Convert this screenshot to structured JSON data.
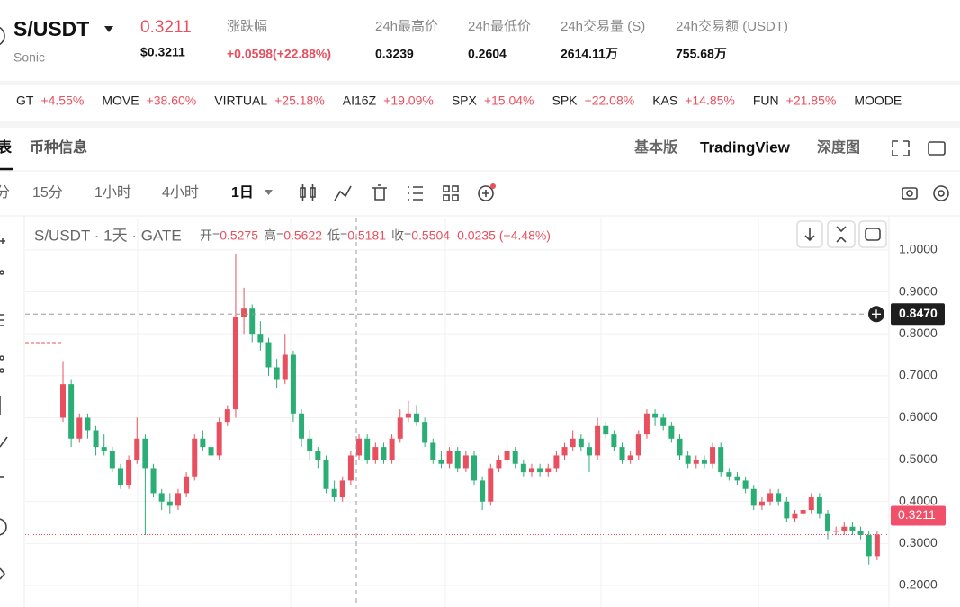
{
  "header": {
    "symbol": "S/USDT",
    "name": "Sonic",
    "price": "0.3211",
    "price_usd": "$0.3211",
    "stats": [
      {
        "label": "涨跌幅",
        "value": "+0.0598(+22.88%)"
      },
      {
        "label": "24h最高价",
        "value": "0.3239"
      },
      {
        "label": "24h最低价",
        "value": "0.2604"
      },
      {
        "label": "24h交易量 (S)",
        "value": "2614.11万"
      },
      {
        "label": "24h交易额 (USDT)",
        "value": "755.68万"
      }
    ]
  },
  "ticker": [
    {
      "symbol": "GT",
      "change": "+4.55%"
    },
    {
      "symbol": "MOVE",
      "change": "+38.60%"
    },
    {
      "symbol": "VIRTUAL",
      "change": "+25.18%"
    },
    {
      "symbol": "AI16Z",
      "change": "+19.09%"
    },
    {
      "symbol": "SPX",
      "change": "+15.04%"
    },
    {
      "symbol": "SPK",
      "change": "+22.08%"
    },
    {
      "symbol": "KAS",
      "change": "+14.85%"
    },
    {
      "symbol": "FUN",
      "change": "+21.85%"
    },
    {
      "symbol": "MOODE"
    }
  ],
  "tabs_left": [
    "表",
    "币种信息"
  ],
  "tabs_right": [
    "基本版",
    "TradingView",
    "深度图"
  ],
  "intervals": [
    "分",
    "15分",
    "1小时",
    "4小时",
    "1日"
  ],
  "legend": {
    "title": "S/USDT · 1天 · GATE",
    "ohlc": [
      {
        "label": "开=",
        "value": "0.5275"
      },
      {
        "label": "高=",
        "value": "0.5622"
      },
      {
        "label": "低=",
        "value": "0.5181"
      },
      {
        "label": "收=",
        "value": "0.5504"
      }
    ],
    "change": "0.0235 (+4.48%)"
  },
  "chart_data": {
    "type": "candlestick",
    "up_color": "#e8505f",
    "down_color": "#2bae76",
    "ylim": [
      0.17,
      1.077
    ],
    "yticks": [
      {
        "value": 0.2,
        "label": "0.2000"
      },
      {
        "value": 0.3,
        "label": "0.3000"
      },
      {
        "value": 0.4,
        "label": "0.4000"
      },
      {
        "value": 0.5,
        "label": "0.5000"
      },
      {
        "value": 0.6,
        "label": "0.6000"
      },
      {
        "value": 0.7,
        "label": "0.7000"
      },
      {
        "value": 0.8,
        "label": "0.8000"
      },
      {
        "value": 0.9,
        "label": "0.9000"
      },
      {
        "value": 1,
        "label": "1.0000"
      }
    ],
    "crosshair_price": {
      "value": 0.847,
      "label": "0.8470"
    },
    "last_price": {
      "value": 0.3211,
      "label": "0.3211"
    },
    "candles": [
      [
        0.6,
        0.735,
        0.59,
        0.68
      ],
      [
        0.68,
        0.69,
        0.53,
        0.55
      ],
      [
        0.55,
        0.61,
        0.54,
        0.6
      ],
      [
        0.6,
        0.61,
        0.55,
        0.57
      ],
      [
        0.57,
        0.58,
        0.51,
        0.53
      ],
      [
        0.53,
        0.56,
        0.51,
        0.52
      ],
      [
        0.52,
        0.53,
        0.47,
        0.48
      ],
      [
        0.48,
        0.49,
        0.43,
        0.44
      ],
      [
        0.44,
        0.51,
        0.43,
        0.5
      ],
      [
        0.5,
        0.6,
        0.49,
        0.55
      ],
      [
        0.55,
        0.56,
        0.32,
        0.48
      ],
      [
        0.48,
        0.49,
        0.41,
        0.42
      ],
      [
        0.42,
        0.43,
        0.38,
        0.4
      ],
      [
        0.4,
        0.42,
        0.37,
        0.39
      ],
      [
        0.39,
        0.43,
        0.38,
        0.42
      ],
      [
        0.42,
        0.47,
        0.41,
        0.46
      ],
      [
        0.46,
        0.56,
        0.45,
        0.55
      ],
      [
        0.55,
        0.57,
        0.52,
        0.53
      ],
      [
        0.53,
        0.55,
        0.5,
        0.51
      ],
      [
        0.51,
        0.6,
        0.5,
        0.59
      ],
      [
        0.59,
        0.63,
        0.58,
        0.62
      ],
      [
        0.62,
        0.99,
        0.6,
        0.84
      ],
      [
        0.84,
        0.91,
        0.8,
        0.86
      ],
      [
        0.86,
        0.87,
        0.78,
        0.8
      ],
      [
        0.8,
        0.83,
        0.76,
        0.78
      ],
      [
        0.78,
        0.79,
        0.7,
        0.72
      ],
      [
        0.72,
        0.74,
        0.67,
        0.69
      ],
      [
        0.69,
        0.8,
        0.68,
        0.75
      ],
      [
        0.75,
        0.76,
        0.59,
        0.61
      ],
      [
        0.61,
        0.62,
        0.53,
        0.55
      ],
      [
        0.55,
        0.57,
        0.5,
        0.52
      ],
      [
        0.52,
        0.53,
        0.48,
        0.5
      ],
      [
        0.5,
        0.51,
        0.42,
        0.43
      ],
      [
        0.43,
        0.45,
        0.4,
        0.41
      ],
      [
        0.41,
        0.46,
        0.4,
        0.45
      ],
      [
        0.45,
        0.52,
        0.44,
        0.51
      ],
      [
        0.51,
        0.56,
        0.5,
        0.55
      ],
      [
        0.55,
        0.56,
        0.49,
        0.5
      ],
      [
        0.5,
        0.54,
        0.49,
        0.53
      ],
      [
        0.53,
        0.54,
        0.49,
        0.5
      ],
      [
        0.5,
        0.56,
        0.49,
        0.55
      ],
      [
        0.55,
        0.62,
        0.54,
        0.6
      ],
      [
        0.6,
        0.64,
        0.59,
        0.61
      ],
      [
        0.61,
        0.63,
        0.58,
        0.59
      ],
      [
        0.59,
        0.6,
        0.53,
        0.54
      ],
      [
        0.54,
        0.55,
        0.49,
        0.5
      ],
      [
        0.5,
        0.52,
        0.48,
        0.49
      ],
      [
        0.49,
        0.53,
        0.48,
        0.52
      ],
      [
        0.52,
        0.53,
        0.47,
        0.48
      ],
      [
        0.48,
        0.52,
        0.47,
        0.51
      ],
      [
        0.51,
        0.52,
        0.44,
        0.45
      ],
      [
        0.45,
        0.46,
        0.38,
        0.4
      ],
      [
        0.4,
        0.49,
        0.39,
        0.48
      ],
      [
        0.48,
        0.51,
        0.47,
        0.5
      ],
      [
        0.5,
        0.54,
        0.49,
        0.52
      ],
      [
        0.52,
        0.53,
        0.48,
        0.49
      ],
      [
        0.49,
        0.5,
        0.46,
        0.47
      ],
      [
        0.47,
        0.49,
        0.46,
        0.48
      ],
      [
        0.48,
        0.49,
        0.46,
        0.47
      ],
      [
        0.47,
        0.49,
        0.46,
        0.48
      ],
      [
        0.48,
        0.52,
        0.47,
        0.51
      ],
      [
        0.51,
        0.54,
        0.5,
        0.53
      ],
      [
        0.53,
        0.57,
        0.52,
        0.55
      ],
      [
        0.55,
        0.56,
        0.52,
        0.53
      ],
      [
        0.53,
        0.54,
        0.47,
        0.51
      ],
      [
        0.51,
        0.6,
        0.5,
        0.58
      ],
      [
        0.58,
        0.59,
        0.55,
        0.56
      ],
      [
        0.56,
        0.57,
        0.52,
        0.53
      ],
      [
        0.53,
        0.54,
        0.49,
        0.5
      ],
      [
        0.5,
        0.52,
        0.49,
        0.51
      ],
      [
        0.51,
        0.57,
        0.5,
        0.56
      ],
      [
        0.56,
        0.62,
        0.55,
        0.61
      ],
      [
        0.61,
        0.62,
        0.58,
        0.6
      ],
      [
        0.6,
        0.61,
        0.57,
        0.58
      ],
      [
        0.58,
        0.59,
        0.54,
        0.55
      ],
      [
        0.55,
        0.56,
        0.5,
        0.51
      ],
      [
        0.51,
        0.52,
        0.48,
        0.49
      ],
      [
        0.49,
        0.51,
        0.48,
        0.5
      ],
      [
        0.5,
        0.51,
        0.48,
        0.49
      ],
      [
        0.49,
        0.54,
        0.48,
        0.53
      ],
      [
        0.53,
        0.54,
        0.46,
        0.47
      ],
      [
        0.47,
        0.48,
        0.45,
        0.46
      ],
      [
        0.46,
        0.47,
        0.44,
        0.45
      ],
      [
        0.45,
        0.46,
        0.42,
        0.43
      ],
      [
        0.43,
        0.44,
        0.38,
        0.39
      ],
      [
        0.39,
        0.41,
        0.38,
        0.4
      ],
      [
        0.4,
        0.43,
        0.39,
        0.42
      ],
      [
        0.42,
        0.43,
        0.39,
        0.4
      ],
      [
        0.4,
        0.41,
        0.35,
        0.36
      ],
      [
        0.36,
        0.38,
        0.35,
        0.37
      ],
      [
        0.37,
        0.39,
        0.36,
        0.38
      ],
      [
        0.38,
        0.42,
        0.37,
        0.41
      ],
      [
        0.41,
        0.42,
        0.36,
        0.37
      ],
      [
        0.37,
        0.38,
        0.31,
        0.33
      ],
      [
        0.33,
        0.34,
        0.32,
        0.33
      ],
      [
        0.33,
        0.35,
        0.32,
        0.34
      ],
      [
        0.34,
        0.35,
        0.32,
        0.33
      ],
      [
        0.33,
        0.34,
        0.31,
        0.32
      ],
      [
        0.32,
        0.33,
        0.25,
        0.27
      ],
      [
        0.27,
        0.33,
        0.26,
        0.3211
      ]
    ]
  }
}
